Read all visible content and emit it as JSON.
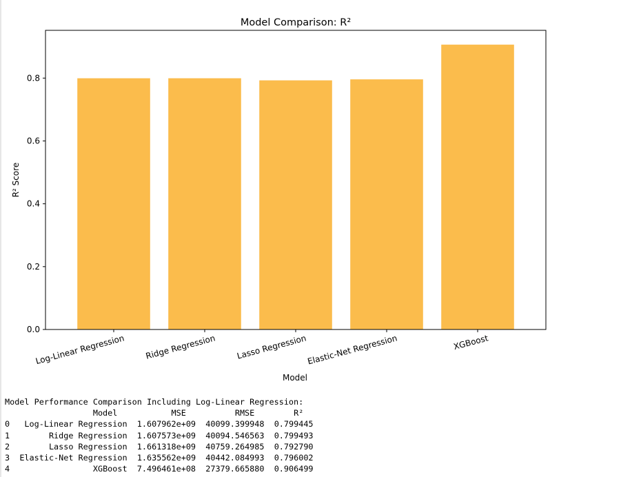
{
  "chart_data": {
    "type": "bar",
    "title": "Model Comparison: R²",
    "xlabel": "Model",
    "ylabel": "R² Score",
    "categories": [
      "Log-Linear Regression",
      "Ridge Regression",
      "Lasso Regression",
      "Elastic-Net Regression",
      "XGBoost"
    ],
    "values": [
      0.799445,
      0.799493,
      0.79279,
      0.796002,
      0.906499
    ],
    "ylim": [
      0,
      0.952
    ],
    "yticks": [
      0.0,
      0.2,
      0.4,
      0.6,
      0.8
    ],
    "ytick_labels": [
      "0.0",
      "0.2",
      "0.4",
      "0.6",
      "0.8"
    ],
    "xtick_rotation": 15,
    "bar_color": "#fbbc4c",
    "grid": false,
    "legend": "none"
  },
  "console_output": {
    "heading": "Model Performance Comparison Including Log-Linear Regression:",
    "columns": [
      "Model",
      "MSE",
      "RMSE",
      "R²"
    ],
    "rows": [
      {
        "index": "0",
        "model": "Log-Linear Regression",
        "mse": "1.607962e+09",
        "rmse": "40099.399948",
        "r2": "0.799445"
      },
      {
        "index": "1",
        "model": "Ridge Regression",
        "mse": "1.607573e+09",
        "rmse": "40094.546563",
        "r2": "0.799493"
      },
      {
        "index": "2",
        "model": "Lasso Regression",
        "mse": "1.661318e+09",
        "rmse": "40759.264985",
        "r2": "0.792790"
      },
      {
        "index": "3",
        "model": "Elastic-Net Regression",
        "mse": "1.635562e+09",
        "rmse": "40442.084993",
        "r2": "0.796002"
      },
      {
        "index": "4",
        "model": "XGBoost",
        "mse": "7.496461e+08",
        "rmse": "27379.665880",
        "r2": "0.906499"
      }
    ]
  }
}
